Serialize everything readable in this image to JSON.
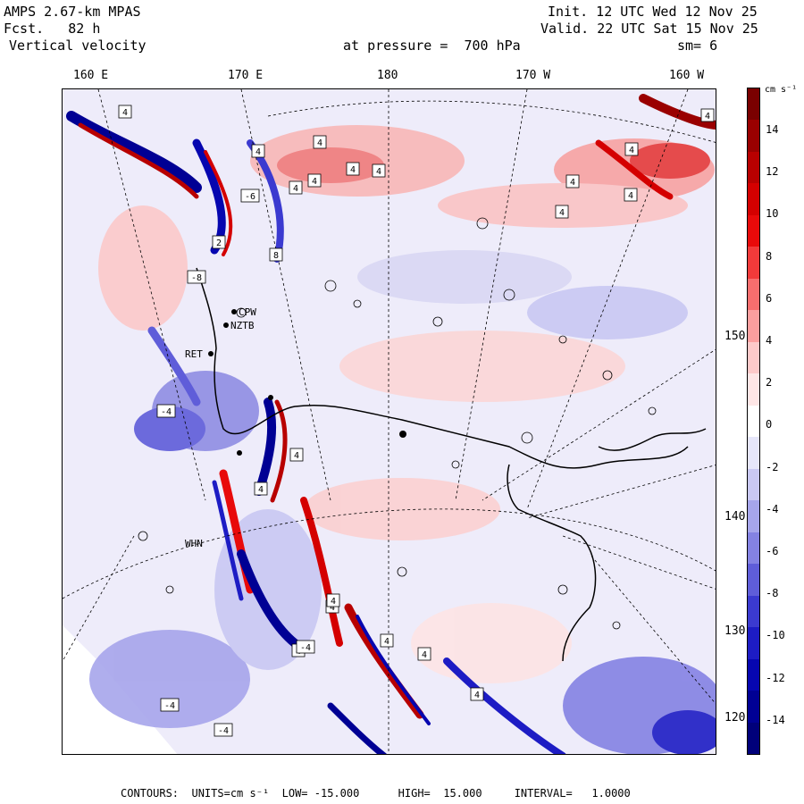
{
  "header": {
    "model": "AMPS 2.67-km MPAS",
    "fcst_label": "Fcst.",
    "fcst_value": "82 h",
    "variable": "Vertical velocity",
    "init": "Init. 12 UTC Wed 12 Nov 25",
    "valid": "Valid. 22 UTC Sat 15 Nov 25",
    "pressure": "at pressure =  700 hPa",
    "smoothing": "sm= 6"
  },
  "longitude_labels": [
    "160 E",
    "170 E",
    "180",
    "170 W",
    "160 W"
  ],
  "latitude_labels": [
    "150 W",
    "140 W",
    "130 W",
    "120 W"
  ],
  "stations": [
    "CPW",
    "NZTB",
    "RET",
    "WHN"
  ],
  "colorbar": {
    "units": "cm s⁻¹",
    "ticks": [
      "14",
      "12",
      "10",
      "8",
      "6",
      "4",
      "2",
      "0",
      "-2",
      "-4",
      "-6",
      "-8",
      "-10",
      "-12",
      "-14"
    ],
    "colors": [
      "#7a0000",
      "#9a0000",
      "#b80000",
      "#d40000",
      "#e80a0a",
      "#f23a3a",
      "#f76e6e",
      "#fb9e9e",
      "#fdc9c9",
      "#fee6e6",
      "#ffffff",
      "#e6e6fa",
      "#c9c8f3",
      "#a6a5eb",
      "#8482e3",
      "#5f5dd9",
      "#3b3ad0",
      "#1d1cc4",
      "#0606b0",
      "#000094",
      "#00007a"
    ]
  },
  "footer": {
    "text": "CONTOURS:  UNITS=cm s⁻¹  LOW= -15.000      HIGH=  15.000     INTERVAL=   1.0000"
  },
  "map_labels": [
    "4",
    "4",
    "4",
    "4",
    "4",
    "4",
    "4",
    "4",
    "4",
    "4",
    "4",
    "4",
    "4",
    "4",
    "4",
    "4",
    "4",
    "4",
    "4",
    "4",
    "-4",
    "-4",
    "-6",
    "-8",
    "2",
    "8",
    "-4",
    "-4"
  ]
}
